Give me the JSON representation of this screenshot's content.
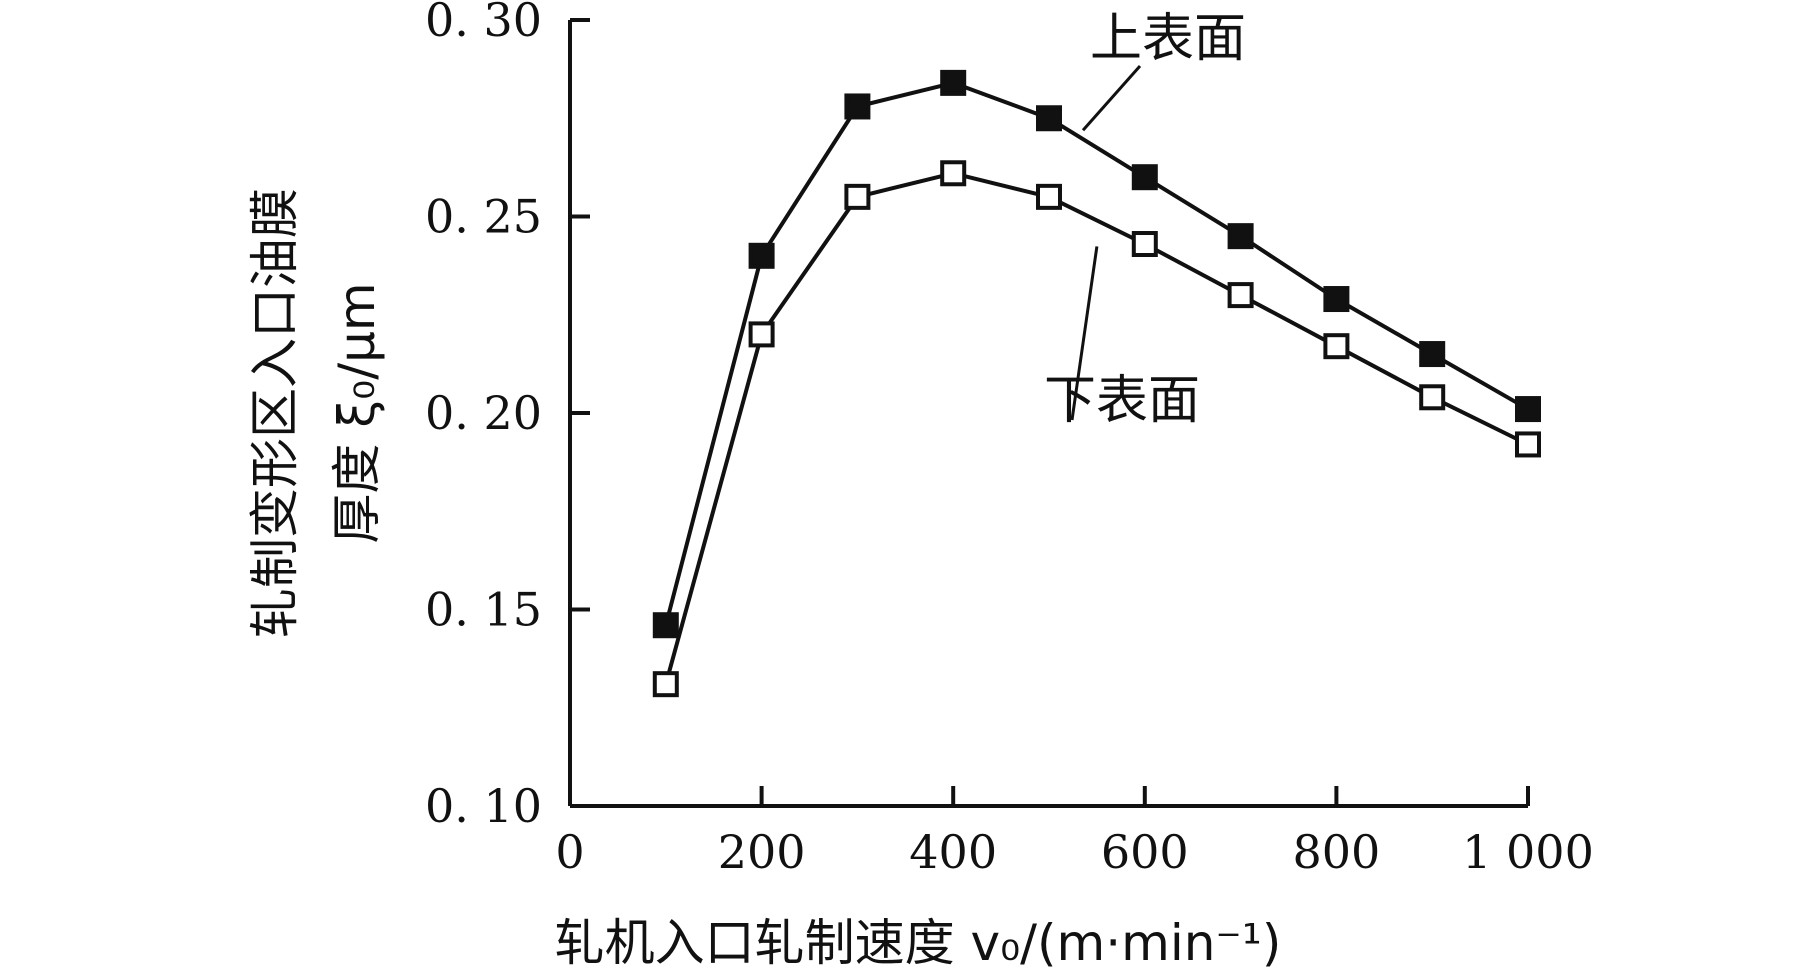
{
  "chart_data": {
    "type": "line",
    "x": [
      100,
      200,
      300,
      400,
      500,
      600,
      700,
      800,
      900,
      1000
    ],
    "series": [
      {
        "name": "上表面",
        "marker": "filled-square",
        "values": [
          0.146,
          0.24,
          0.278,
          0.284,
          0.275,
          0.26,
          0.245,
          0.229,
          0.215,
          0.201
        ]
      },
      {
        "name": "下表面",
        "marker": "open-square",
        "values": [
          0.131,
          0.22,
          0.255,
          0.261,
          0.255,
          0.243,
          0.23,
          0.217,
          0.204,
          0.192
        ]
      }
    ],
    "xlabel": "轧机入口轧制速度 v₀/(m·min⁻¹)",
    "ylabel_line1": "轧制变形区入口油膜",
    "ylabel_line2": "厚度 ξ₀/μm",
    "xlim": [
      0,
      1000
    ],
    "ylim": [
      0.1,
      0.3
    ],
    "x_ticks": [
      0,
      200,
      400,
      600,
      800,
      1000
    ],
    "x_tick_labels": [
      "0",
      "200",
      "400",
      "600",
      "800",
      "1 000"
    ],
    "y_ticks": [
      0.1,
      0.15,
      0.2,
      0.25,
      0.3
    ],
    "y_tick_labels": [
      "0. 10",
      "0. 15",
      "0. 20",
      "0. 25",
      "0. 30"
    ],
    "grid": false,
    "legend": "leader-line labels"
  }
}
